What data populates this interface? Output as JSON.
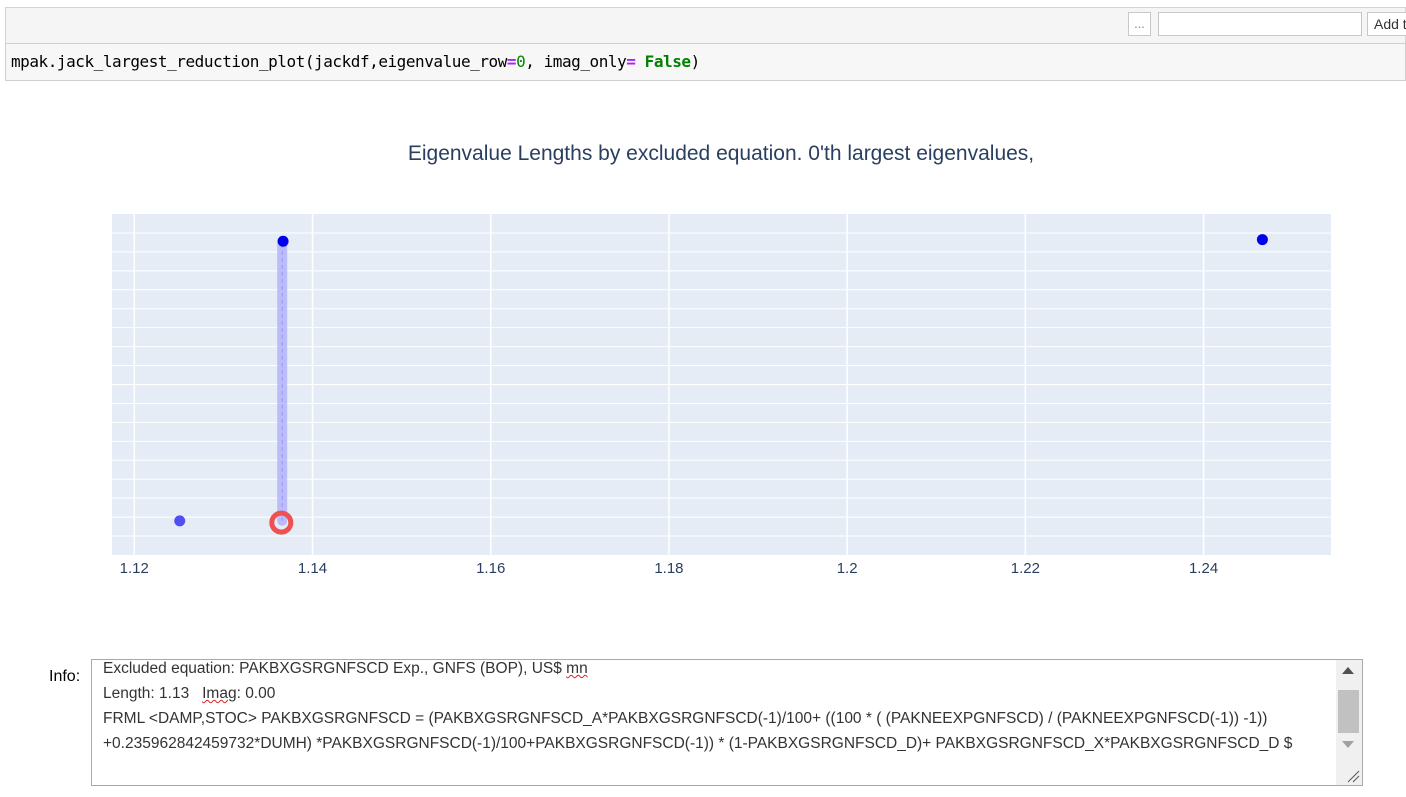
{
  "toolbar": {
    "ellipsis_label": "...",
    "input_value": "",
    "add_label": "Add t"
  },
  "code_cell": {
    "tokens": [
      {
        "text": "mpak.jack_largest_reduction_plot(jackdf,eigenvalue_row",
        "cls": ""
      },
      {
        "text": "=",
        "cls": "kw-op"
      },
      {
        "text": "0",
        "cls": "kw-num"
      },
      {
        "text": ", imag_only",
        "cls": ""
      },
      {
        "text": "=",
        "cls": "kw-op"
      },
      {
        "text": " ",
        "cls": ""
      },
      {
        "text": "False",
        "cls": "kw-bool"
      },
      {
        "text": ")",
        "cls": ""
      }
    ]
  },
  "chart_data": {
    "type": "scatter",
    "title": "Eigenvalue Lengths by excluded equation. 0'th largest eigenvalues,",
    "xlabel": "",
    "ylabel": "",
    "xlim": [
      1.1175,
      1.2543
    ],
    "ylim": [
      0,
      1
    ],
    "x_ticks": [
      1.12,
      1.14,
      1.16,
      1.18,
      1.2,
      1.22,
      1.24
    ],
    "x_tick_labels": [
      "1.12",
      "1.14",
      "1.16",
      "1.18",
      "1.2",
      "1.22",
      "1.24"
    ],
    "y_gridline_count": 17,
    "grid": true,
    "legend": false,
    "background_color": "#e5ecf6",
    "points": [
      {
        "x": 1.1251,
        "y": 0.1,
        "color": "#5050f0",
        "style": "dot"
      },
      {
        "x": 1.1367,
        "y": 0.92,
        "color": "#0000ee",
        "style": "dot"
      },
      {
        "x": 1.2466,
        "y": 0.925,
        "color": "#0000ee",
        "style": "dot"
      },
      {
        "x": 1.1365,
        "y": 0.095,
        "color": "#ef5050",
        "style": "selected-ring"
      }
    ],
    "connector": {
      "x": 1.1366,
      "y_from": 0.1,
      "y_to": 0.92,
      "color": "#b4b4fa"
    }
  },
  "info": {
    "label": "Info:",
    "line1_prefix": "Excluded equation: PAKBXGSRGNFSCD Exp., GNFS (BOP), US$ ",
    "line1_misspelled": "mn",
    "line2_prefix": "Length: 1.13   ",
    "line2_misspelled": "Imag",
    "line2_suffix": ": 0.00",
    "line3": "FRML <DAMP,STOC> PAKBXGSRGNFSCD = (PAKBXGSRGNFSCD_A*PAKBXGSRGNFSCD(-1)/100+ ((100 * ( (PAKNEEXPGNFSCD) / (PAKNEEXPGNFSCD(-1)) -1)) +0.235962842459732*DUMH) *PAKBXGSRGNFSCD(-1)/100+PAKBXGSRGNFSCD(-1)) * (1-PAKBXGSRGNFSCD_D)+ PAKBXGSRGNFSCD_X*PAKBXGSRGNFSCD_D  $"
  }
}
